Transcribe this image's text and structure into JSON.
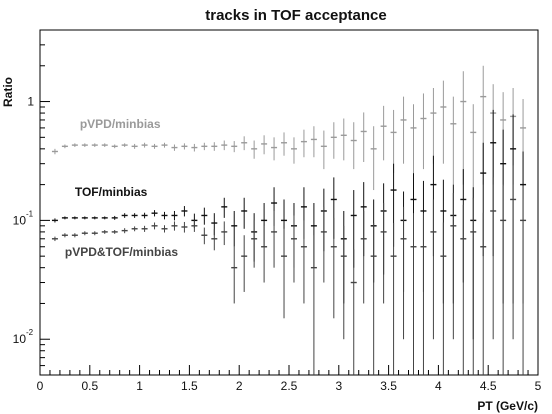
{
  "chart_data": {
    "type": "scatter",
    "title": "tracks   in TOF    acceptance",
    "xlabel": "PT  (GeV/c)",
    "ylabel": "Ratio",
    "xlim": [
      0,
      5
    ],
    "ylim": [
      0.005,
      4
    ],
    "yscale": "log",
    "x_ticks": [
      "0",
      "0.5",
      "1",
      "1.5",
      "2",
      "2.5",
      "3",
      "3.5",
      "4",
      "4.5",
      "5"
    ],
    "y_ticks": [
      {
        "base": "10",
        "exp": "-2",
        "value": 0.01
      },
      {
        "base": "10",
        "exp": "-1",
        "value": 0.1
      },
      {
        "base": "1",
        "exp": "",
        "value": 1
      }
    ],
    "grid": false,
    "annotations": [
      {
        "text": "pVPD/minbias",
        "series": 0,
        "x": 0.4,
        "y": 0.6
      },
      {
        "text": "TOF/minbias",
        "series": 1,
        "x": 0.35,
        "y": 0.16
      },
      {
        "text": "pVPD&TOF/minbias",
        "series": 2,
        "x": 0.25,
        "y": 0.05
      }
    ],
    "series": [
      {
        "color": "#9a9a9a",
        "x": [
          0.15,
          0.25,
          0.35,
          0.45,
          0.55,
          0.65,
          0.75,
          0.85,
          0.95,
          1.05,
          1.15,
          1.25,
          1.35,
          1.45,
          1.55,
          1.65,
          1.75,
          1.85,
          1.95,
          2.05,
          2.15,
          2.25,
          2.35,
          2.45,
          2.55,
          2.65,
          2.75,
          2.85,
          2.95,
          3.05,
          3.15,
          3.25,
          3.35,
          3.45,
          3.55,
          3.65,
          3.75,
          3.85,
          3.95,
          4.05,
          4.15,
          4.25,
          4.35,
          4.45,
          4.55,
          4.65,
          4.75,
          4.85
        ],
        "y": [
          0.38,
          0.42,
          0.43,
          0.43,
          0.43,
          0.43,
          0.42,
          0.43,
          0.42,
          0.43,
          0.42,
          0.43,
          0.41,
          0.42,
          0.41,
          0.42,
          0.42,
          0.43,
          0.42,
          0.45,
          0.4,
          0.44,
          0.41,
          0.45,
          0.4,
          0.46,
          0.48,
          0.42,
          0.5,
          0.52,
          0.47,
          0.56,
          0.4,
          0.62,
          0.55,
          0.7,
          0.6,
          0.72,
          0.8,
          0.9,
          0.65,
          1.0,
          0.55,
          1.1,
          0.8,
          0.7,
          0.75,
          0.6
        ],
        "yerr": [
          0.02,
          0.015,
          0.015,
          0.015,
          0.015,
          0.015,
          0.015,
          0.015,
          0.02,
          0.02,
          0.02,
          0.02,
          0.025,
          0.025,
          0.03,
          0.03,
          0.035,
          0.04,
          0.045,
          0.06,
          0.07,
          0.08,
          0.09,
          0.1,
          0.1,
          0.12,
          0.14,
          0.15,
          0.17,
          0.2,
          0.2,
          0.25,
          0.22,
          0.3,
          0.3,
          0.4,
          0.35,
          0.45,
          0.5,
          0.6,
          0.45,
          0.8,
          0.4,
          0.9,
          0.6,
          0.5,
          0.55,
          0.45
        ]
      },
      {
        "color": "#111111",
        "x": [
          0.15,
          0.25,
          0.35,
          0.45,
          0.55,
          0.65,
          0.75,
          0.85,
          0.95,
          1.05,
          1.15,
          1.25,
          1.35,
          1.45,
          1.55,
          1.65,
          1.75,
          1.85,
          1.95,
          2.05,
          2.15,
          2.25,
          2.35,
          2.45,
          2.55,
          2.65,
          2.75,
          2.85,
          2.95,
          3.05,
          3.15,
          3.25,
          3.35,
          3.45,
          3.55,
          3.65,
          3.75,
          3.85,
          3.95,
          4.05,
          4.15,
          4.25,
          4.35,
          4.45,
          4.55,
          4.65,
          4.75,
          4.85
        ],
        "y": [
          0.1,
          0.105,
          0.105,
          0.105,
          0.105,
          0.105,
          0.105,
          0.11,
          0.11,
          0.11,
          0.115,
          0.11,
          0.11,
          0.12,
          0.1,
          0.11,
          0.095,
          0.13,
          0.09,
          0.12,
          0.08,
          0.1,
          0.14,
          0.1,
          0.09,
          0.13,
          0.09,
          0.12,
          0.15,
          0.07,
          0.11,
          0.13,
          0.09,
          0.12,
          0.18,
          0.1,
          0.15,
          0.12,
          0.2,
          0.12,
          0.11,
          0.15,
          0.1,
          0.25,
          0.45,
          0.3,
          0.4,
          0.2
        ],
        "yerr": [
          0.004,
          0.003,
          0.003,
          0.003,
          0.003,
          0.003,
          0.004,
          0.005,
          0.005,
          0.006,
          0.007,
          0.008,
          0.01,
          0.012,
          0.014,
          0.018,
          0.02,
          0.025,
          0.03,
          0.035,
          0.035,
          0.04,
          0.05,
          0.05,
          0.05,
          0.06,
          0.05,
          0.065,
          0.08,
          0.05,
          0.07,
          0.08,
          0.06,
          0.085,
          0.12,
          0.075,
          0.1,
          0.095,
          0.15,
          0.1,
          0.09,
          0.12,
          0.09,
          0.2,
          0.4,
          0.28,
          0.38,
          0.18
        ]
      },
      {
        "color": "#444444",
        "x": [
          0.15,
          0.25,
          0.35,
          0.45,
          0.55,
          0.65,
          0.75,
          0.85,
          0.95,
          1.05,
          1.15,
          1.25,
          1.35,
          1.45,
          1.55,
          1.65,
          1.75,
          1.85,
          1.95,
          2.05,
          2.15,
          2.25,
          2.35,
          2.45,
          2.55,
          2.65,
          2.75,
          2.85,
          2.95,
          3.05,
          3.15,
          3.25,
          3.35,
          3.45,
          3.55,
          3.65,
          3.75,
          3.85,
          3.95,
          4.05,
          4.15,
          4.25,
          4.35,
          4.45,
          4.55,
          4.65,
          4.75,
          4.85
        ],
        "y": [
          0.07,
          0.075,
          0.075,
          0.078,
          0.078,
          0.08,
          0.08,
          0.082,
          0.085,
          0.085,
          0.09,
          0.085,
          0.09,
          0.088,
          0.09,
          0.075,
          0.07,
          0.08,
          0.04,
          0.05,
          0.07,
          0.06,
          0.08,
          0.05,
          0.07,
          0.06,
          0.04,
          0.08,
          0.06,
          0.05,
          0.03,
          0.07,
          0.05,
          0.08,
          0.05,
          0.07,
          0.06,
          0.06,
          0.08,
          0.05,
          0.09,
          0.07,
          0.08,
          0.06,
          0.12,
          0.1,
          0.15,
          0.1
        ],
        "yerr": [
          0.003,
          0.003,
          0.003,
          0.003,
          0.003,
          0.003,
          0.003,
          0.004,
          0.004,
          0.005,
          0.006,
          0.006,
          0.008,
          0.009,
          0.01,
          0.012,
          0.014,
          0.018,
          0.02,
          0.025,
          0.03,
          0.03,
          0.04,
          0.035,
          0.04,
          0.04,
          0.035,
          0.05,
          0.045,
          0.04,
          0.027,
          0.05,
          0.045,
          0.06,
          0.045,
          0.06,
          0.055,
          0.055,
          0.07,
          0.046,
          0.08,
          0.065,
          0.075,
          0.056,
          0.11,
          0.095,
          0.14,
          0.095
        ]
      }
    ]
  }
}
